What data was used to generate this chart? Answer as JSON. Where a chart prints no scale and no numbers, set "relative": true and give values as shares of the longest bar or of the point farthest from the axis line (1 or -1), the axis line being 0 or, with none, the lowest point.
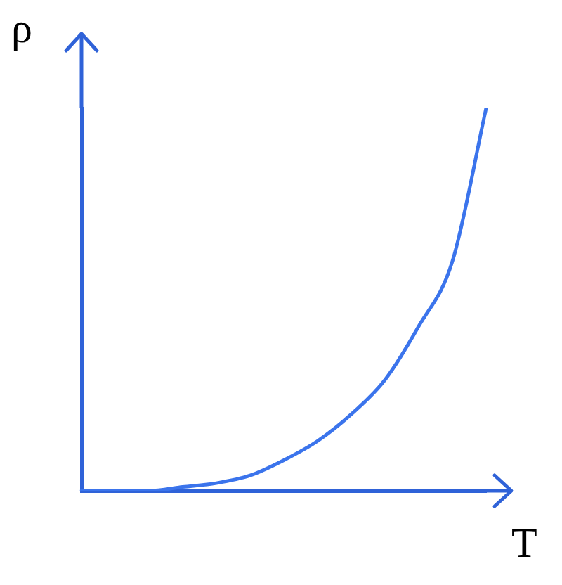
{
  "chart_data": {
    "type": "line",
    "xlabel": "T",
    "ylabel": "ρ",
    "relative": true,
    "tick_labels": false,
    "grid": false,
    "legend": false,
    "marker": "none",
    "line_style": "solid",
    "categories": [
      null,
      null,
      null,
      null,
      null,
      null,
      null,
      null,
      null,
      null,
      null,
      null,
      null
    ],
    "series": [
      {
        "color": "#3b74ec",
        "values": [
          0,
          0,
          0,
          0.01,
          0.02,
          0.04,
          0.08,
          0.13,
          0.2,
          0.29,
          0.43,
          0.6,
          1
        ]
      }
    ]
  }
}
